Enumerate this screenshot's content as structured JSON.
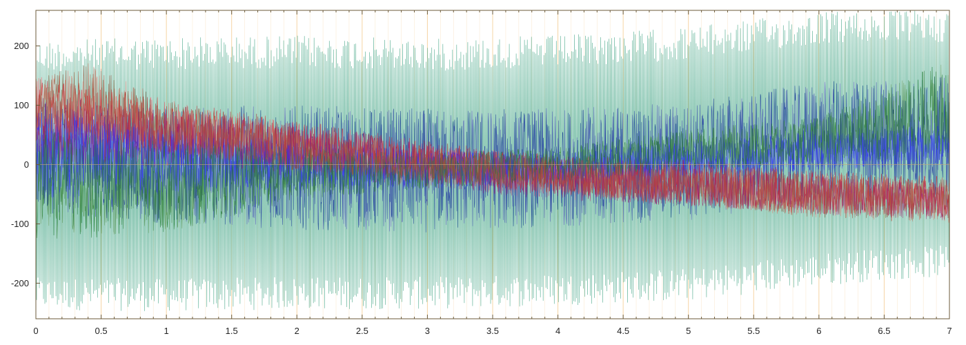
{
  "chart_data": {
    "type": "line",
    "title": "",
    "xlabel": "",
    "ylabel": "",
    "xlim": [
      0,
      7
    ],
    "ylim": [
      -260,
      260
    ],
    "x_ticks": [
      0,
      0.5,
      1,
      1.5,
      2,
      2.5,
      3,
      3.5,
      4,
      4.5,
      5,
      5.5,
      6,
      6.5,
      7
    ],
    "x_tick_labels": [
      "0",
      "0.5",
      "1",
      "1.5",
      "2",
      "2.5",
      "3",
      "3.5",
      "4",
      "4.5",
      "5",
      "5.5",
      "6",
      "6.5",
      "7"
    ],
    "y_ticks": [
      200,
      100,
      0,
      -100,
      -200
    ],
    "y_tick_labels": [
      "200",
      "100",
      "0",
      "-100",
      "-200"
    ],
    "grid": "vertical",
    "legend": "none",
    "colors": {
      "grid": "#f5cf9a",
      "axis": "#6b5a3a",
      "zero_line": "#c8a878"
    },
    "series": [
      {
        "color": "#4aa88a",
        "envelope_x": [
          0,
          1,
          2,
          3,
          4,
          5,
          6,
          6.5,
          7
        ],
        "envelope_upper": [
          210,
          215,
          218,
          212,
          218,
          232,
          258,
          260,
          260
        ],
        "envelope_lower": [
          -245,
          -248,
          -244,
          -244,
          -238,
          -230,
          -205,
          -195,
          -190
        ]
      },
      {
        "color": "#1a2ea0",
        "envelope_x": [
          0,
          1,
          2,
          3,
          4,
          5,
          6,
          7
        ],
        "envelope_upper": [
          115,
          100,
          100,
          95,
          95,
          105,
          140,
          150
        ],
        "envelope_lower": [
          -80,
          -100,
          -110,
          -115,
          -105,
          -95,
          -60,
          -50
        ]
      },
      {
        "color": "#d81a2a",
        "envelope_x": [
          0,
          0.5,
          1,
          2,
          3,
          4,
          5,
          6,
          7
        ],
        "envelope_upper": [
          150,
          130,
          110,
          75,
          40,
          15,
          10,
          -10,
          -20
        ],
        "envelope_lower": [
          40,
          30,
          20,
          -10,
          -30,
          -50,
          -70,
          -85,
          -90
        ]
      },
      {
        "color": "#a0186a",
        "envelope_x": [
          0,
          1,
          2,
          3,
          4,
          5,
          6,
          7
        ],
        "envelope_upper": [
          110,
          95,
          70,
          35,
          10,
          -5,
          -20,
          -30
        ],
        "envelope_lower": [
          0,
          -5,
          -20,
          -40,
          -60,
          -70,
          -85,
          -95
        ]
      },
      {
        "color": "#2d2dff",
        "envelope_x": [
          0,
          1,
          2,
          3,
          4,
          5,
          6,
          7
        ],
        "envelope_upper": [
          110,
          60,
          40,
          25,
          20,
          40,
          60,
          70
        ],
        "envelope_lower": [
          -60,
          -50,
          -45,
          -40,
          -30,
          -20,
          -10,
          0
        ]
      },
      {
        "color": "#2a7a2a",
        "envelope_x": [
          0,
          1,
          2,
          3,
          4,
          5,
          6,
          7
        ],
        "envelope_upper": [
          60,
          40,
          30,
          20,
          30,
          60,
          80,
          180
        ],
        "envelope_lower": [
          -130,
          -115,
          -60,
          -40,
          -30,
          -10,
          0,
          10
        ]
      },
      {
        "color": "#b0503a",
        "envelope_x": [
          0,
          0.4,
          1,
          2,
          3,
          4,
          5,
          6,
          7
        ],
        "envelope_upper": [
          145,
          175,
          110,
          60,
          30,
          10,
          0,
          -15,
          -25
        ],
        "envelope_lower": [
          60,
          40,
          20,
          -10,
          -30,
          -50,
          -70,
          -90,
          -100
        ]
      }
    ],
    "annotations": []
  }
}
